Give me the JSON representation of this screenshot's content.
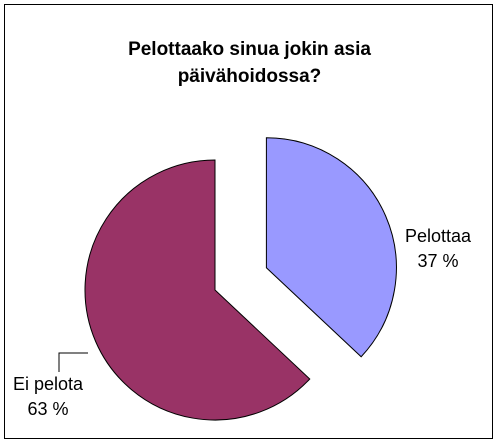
{
  "chart_data": {
    "type": "pie",
    "title": [
      "Pelottaako sinua jokin asia",
      "päivähoidossa?"
    ],
    "slices": [
      {
        "label": "Pelottaa",
        "value": 37,
        "value_label": "37 %",
        "color": "#9999ff",
        "exploded": true
      },
      {
        "label": "Ei pelota",
        "value": 63,
        "value_label": "63 %",
        "color": "#993366",
        "exploded": false
      }
    ],
    "legend": "none",
    "border": true
  }
}
